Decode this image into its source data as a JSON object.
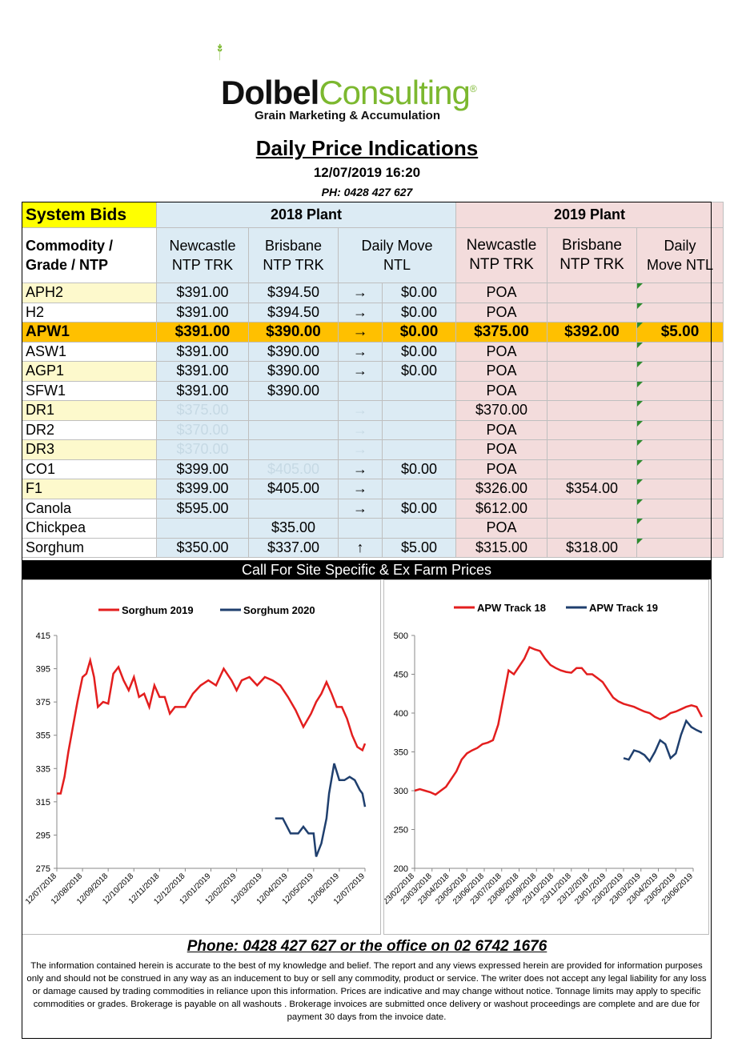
{
  "brand": {
    "part1": "Dolbel",
    "part2": "Consulting",
    "mark": "®",
    "tagline": "Grain Marketing & Accumulation"
  },
  "header": {
    "title": "Daily Price Indications",
    "datetime": "12/07/2019 16:20",
    "phone": "PH: 0428 427 627"
  },
  "table": {
    "section_label": "System Bids",
    "plant_2018": "2018 Plant",
    "plant_2019": "2019 Plant",
    "col_commodity": [
      "Commodity /",
      "Grade / NTP"
    ],
    "col_newcastle": [
      "Newcastle",
      "NTP TRK"
    ],
    "col_brisbane": [
      "Brisbane",
      "NTP TRK"
    ],
    "col_move_2018": [
      "Daily  Move",
      "NTL"
    ],
    "col_newcastle_19": [
      "Newcastle",
      "NTP TRK"
    ],
    "col_brisbane_19": [
      "Brisbane",
      "NTP TRK"
    ],
    "col_move_2019": [
      "Daily",
      "Move NTL"
    ],
    "rows": [
      {
        "name": "APH2",
        "n18": "$391.00",
        "b18": "$394.50",
        "arrow": "→",
        "m18": "$0.00",
        "n19": "POA",
        "b19": "",
        "m19": ""
      },
      {
        "name": "H2",
        "n18": "$391.00",
        "b18": "$394.50",
        "arrow": "→",
        "m18": "$0.00",
        "n19": "POA",
        "b19": "",
        "m19": ""
      },
      {
        "name": "APW1",
        "n18": "$391.00",
        "b18": "$390.00",
        "arrow": "→",
        "m18": "$0.00",
        "n19": "$375.00",
        "b19": "$392.00",
        "m19": "$5.00"
      },
      {
        "name": "ASW1",
        "n18": "$391.00",
        "b18": "$390.00",
        "arrow": "→",
        "m18": "$0.00",
        "n19": "POA",
        "b19": "",
        "m19": ""
      },
      {
        "name": "AGP1",
        "n18": "$391.00",
        "b18": "$390.00",
        "arrow": "→",
        "m18": "$0.00",
        "n19": "POA",
        "b19": "",
        "m19": ""
      },
      {
        "name": "SFW1",
        "n18": "$391.00",
        "b18": "$390.00",
        "arrow": "",
        "m18": "",
        "n19": "POA",
        "b19": "",
        "m19": ""
      },
      {
        "name": "DR1",
        "n18": "$375.00",
        "b18": "",
        "arrow": "→",
        "m18": "",
        "n19": "$370.00",
        "b19": "",
        "m19": ""
      },
      {
        "name": "DR2",
        "n18": "$370.00",
        "b18": "",
        "arrow": "→",
        "m18": "",
        "n19": "POA",
        "b19": "",
        "m19": ""
      },
      {
        "name": "DR3",
        "n18": "$370.00",
        "b18": "",
        "arrow": "→",
        "m18": "",
        "n19": "POA",
        "b19": "",
        "m19": ""
      },
      {
        "name": "CO1",
        "n18": "$399.00",
        "b18": "$405.00",
        "arrow": "→",
        "m18": "$0.00",
        "n19": "POA",
        "b19": "",
        "m19": ""
      },
      {
        "name": "F1",
        "n18": "$399.00",
        "b18": "$405.00",
        "arrow": "→",
        "m18": "",
        "n19": "$326.00",
        "b19": "$354.00",
        "m19": ""
      },
      {
        "name": "Canola",
        "n18": "$595.00",
        "b18": "",
        "arrow": "→",
        "m18": "$0.00",
        "n19": "$612.00",
        "b19": "",
        "m19": ""
      },
      {
        "name": "Chickpea",
        "n18": "",
        "b18": "$35.00",
        "arrow": "",
        "m18": "",
        "n19": "POA",
        "b19": "",
        "m19": ""
      },
      {
        "name": "Sorghum",
        "n18": "$350.00",
        "b18": "$337.00",
        "arrow": "↑",
        "m18": "$5.00",
        "n19": "$315.00",
        "b19": "$318.00",
        "m19": ""
      }
    ]
  },
  "call_bar": "Call For Site Specific & Ex Farm Prices",
  "chart_data": [
    {
      "type": "line",
      "title": "",
      "xlabel": "",
      "ylabel": "",
      "ylim": [
        275,
        415
      ],
      "yticks": [
        "275",
        "295",
        "315",
        "335",
        "355",
        "375",
        "395",
        "415"
      ],
      "xticks": [
        "12/07/2018",
        "12/08/2018",
        "12/09/2018",
        "12/10/2018",
        "12/11/2018",
        "12/12/2018",
        "12/01/2019",
        "12/02/2019",
        "12/03/2019",
        "12/04/2019",
        "12/05/2019",
        "12/06/2019",
        "12/07/2019"
      ],
      "legend": "top",
      "series": [
        {
          "name": "Sorghum 2019",
          "color": "#e31e1e",
          "x": [
            0,
            0.15,
            0.3,
            0.45,
            0.6,
            0.8,
            1.0,
            1.15,
            1.3,
            1.45,
            1.6,
            1.8,
            2.0,
            2.2,
            2.4,
            2.6,
            2.8,
            3.0,
            3.2,
            3.4,
            3.6,
            3.8,
            4.0,
            4.2,
            4.4,
            4.6,
            4.8,
            5.0,
            5.3,
            5.6,
            5.9,
            6.2,
            6.5,
            6.8,
            7.0,
            7.2,
            7.5,
            7.8,
            8.1,
            8.4,
            8.7,
            9.0,
            9.3,
            9.6,
            9.9,
            10.1,
            10.3,
            10.5,
            10.7,
            10.9,
            11.1,
            11.3,
            11.5,
            11.7,
            11.9,
            12.0
          ],
          "y": [
            320,
            320,
            330,
            345,
            358,
            375,
            390,
            392,
            400,
            390,
            372,
            375,
            374,
            392,
            396,
            388,
            382,
            390,
            378,
            380,
            372,
            385,
            378,
            378,
            368,
            372,
            372,
            372,
            380,
            385,
            388,
            385,
            395,
            388,
            382,
            388,
            390,
            385,
            390,
            388,
            385,
            378,
            370,
            360,
            368,
            375,
            380,
            387,
            380,
            372,
            372,
            365,
            355,
            348,
            346,
            350
          ]
        },
        {
          "name": "Sorghum 2020",
          "color": "#1f3f6e",
          "x": [
            8.5,
            8.8,
            9.1,
            9.4,
            9.6,
            9.8,
            10.0,
            10.1,
            10.3,
            10.5,
            10.6,
            10.8,
            11.0,
            11.2,
            11.4,
            11.6,
            11.8,
            11.9,
            12.0
          ],
          "y": [
            305,
            305,
            296,
            296,
            300,
            296,
            296,
            282,
            290,
            305,
            320,
            338,
            328,
            328,
            330,
            328,
            322,
            320,
            312
          ]
        }
      ]
    },
    {
      "type": "line",
      "title": "",
      "xlabel": "",
      "ylabel": "",
      "ylim": [
        200,
        500
      ],
      "yticks": [
        "200",
        "250",
        "300",
        "350",
        "400",
        "450",
        "500"
      ],
      "xticks": [
        "23/02/2018",
        "23/03/2018",
        "23/04/2018",
        "23/05/2018",
        "23/06/2018",
        "23/07/2018",
        "23/08/2018",
        "23/09/2018",
        "23/10/2018",
        "23/11/2018",
        "23/12/2018",
        "23/01/2019",
        "23/02/2019",
        "23/03/2019",
        "23/04/2019",
        "23/05/2019",
        "23/06/2019"
      ],
      "legend": "top",
      "series": [
        {
          "name": "APW Track 18",
          "color": "#e31e1e",
          "x": [
            0,
            0.3,
            0.6,
            0.9,
            1.2,
            1.5,
            1.8,
            2.1,
            2.4,
            2.7,
            3.0,
            3.3,
            3.6,
            3.9,
            4.2,
            4.5,
            4.8,
            5.1,
            5.4,
            5.7,
            6.0,
            6.3,
            6.6,
            6.9,
            7.2,
            7.5,
            7.8,
            8.1,
            8.4,
            8.7,
            9.0,
            9.3,
            9.6,
            9.9,
            10.2,
            10.5,
            10.8,
            11.1,
            11.4,
            11.7,
            12.0,
            12.3,
            12.6,
            12.9,
            13.2,
            13.5,
            13.8,
            14.1,
            14.4,
            14.7,
            15.0,
            15.3,
            15.6,
            15.9,
            16.2,
            16.5
          ],
          "y": [
            300,
            302,
            300,
            298,
            295,
            300,
            305,
            315,
            325,
            340,
            348,
            352,
            355,
            360,
            362,
            365,
            385,
            420,
            455,
            450,
            460,
            470,
            485,
            482,
            480,
            470,
            462,
            458,
            455,
            453,
            452,
            458,
            458,
            450,
            450,
            445,
            440,
            430,
            420,
            415,
            412,
            410,
            408,
            405,
            402,
            400,
            395,
            392,
            395,
            400,
            402,
            405,
            408,
            410,
            408,
            395
          ]
        },
        {
          "name": "APW Track 19",
          "color": "#1f3f6e",
          "x": [
            12.0,
            12.3,
            12.6,
            12.9,
            13.2,
            13.5,
            13.8,
            14.1,
            14.4,
            14.7,
            15.0,
            15.3,
            15.6,
            15.9,
            16.2,
            16.5
          ],
          "y": [
            342,
            340,
            352,
            350,
            346,
            338,
            350,
            365,
            360,
            342,
            348,
            372,
            390,
            382,
            378,
            375
          ]
        }
      ]
    }
  ],
  "footer": {
    "phone_line": "Phone: 0428 427 627 or the office on 02 6742 1676",
    "disclaimer": "The information contained herein is accurate to the best of my knowledge and belief.  The report and any views expressed herein are provided for information purposes only and should not be construed in any way as an inducement to buy or sell any commodity, product or service. The writer does not accept any legal liability for any loss or damage caused by trading commodities in reliance upon this information. Prices are indicative and may change without notice. Tonnage limits may apply to specific commodities or grades.  Brokerage is payable on all washouts . Brokerage invoices are submitted once delivery or washout proceedings are complete and are due for payment 30 days from the invoice date."
  }
}
